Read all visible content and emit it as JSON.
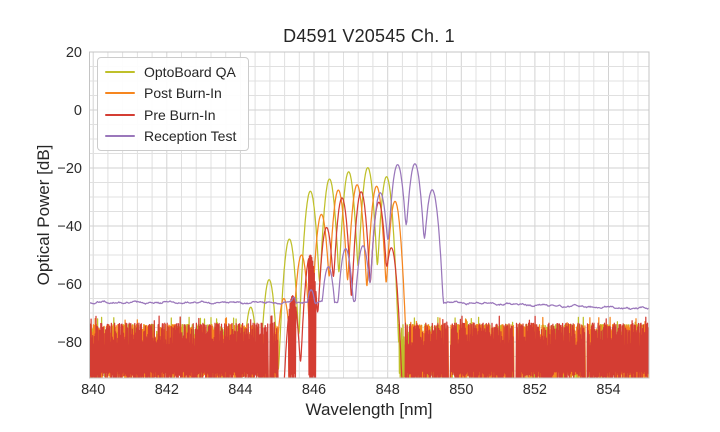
{
  "chart_data": {
    "type": "line",
    "title": "D4591 V20545 Ch. 1",
    "xlabel": "Wavelength [nm]",
    "ylabel": "Optical Power [dB]",
    "xlim": [
      839.9,
      855.1
    ],
    "ylim": [
      -92.4,
      20
    ],
    "x_ticks": [
      840,
      842,
      844,
      846,
      848,
      850,
      852,
      854
    ],
    "y_ticks": [
      20,
      0,
      -20,
      -40,
      -60,
      -80
    ],
    "x_minor_step": 0.4,
    "y_minor_step": 5,
    "grid": true,
    "legend_position": "upper left",
    "series": [
      {
        "name": "OptoBoard QA",
        "color": "#bfc02a",
        "mode_width_nm": 0.09,
        "modes": [
          [
            844.28,
            -68
          ],
          [
            844.78,
            -58.5
          ],
          [
            845.33,
            -44.5
          ],
          [
            845.9,
            -28
          ],
          [
            846.42,
            -23.8
          ],
          [
            846.94,
            -21.3
          ],
          [
            847.46,
            -19.9
          ],
          [
            847.97,
            -23.0
          ]
        ],
        "noise_top_db": -74,
        "noise_bottom_db": -90,
        "noise_regions": [
          [
            839.9,
            844.15
          ],
          [
            848.3,
            849.64
          ],
          [
            849.71,
            851.42
          ],
          [
            851.5,
            853.36
          ],
          [
            853.42,
            855.1
          ]
        ]
      },
      {
        "name": "Post Burn-In",
        "color": "#f6861f",
        "mode_width_nm": 0.09,
        "modes": [
          [
            845.18,
            -65
          ],
          [
            845.66,
            -50
          ],
          [
            846.2,
            -36
          ],
          [
            846.66,
            -27.6
          ],
          [
            847.17,
            -25.8
          ],
          [
            847.7,
            -26.3
          ],
          [
            848.2,
            -31.5
          ]
        ],
        "noise_top_db": -74,
        "noise_bottom_db": -90,
        "noise_regions": [
          [
            839.9,
            844.76
          ],
          [
            844.81,
            845.02
          ],
          [
            845.3,
            845.45
          ],
          [
            848.62,
            849.64
          ],
          [
            849.71,
            851.42
          ],
          [
            851.5,
            853.36
          ],
          [
            853.42,
            855.1
          ]
        ]
      },
      {
        "name": "Pre Burn-In",
        "color": "#d43d33",
        "mode_width_nm": 0.088,
        "modes": [
          [
            845.42,
            -64
          ],
          [
            845.9,
            -50
          ],
          [
            846.34,
            -40.5
          ],
          [
            846.76,
            -30.3
          ],
          [
            847.28,
            -28.2
          ],
          [
            847.76,
            -31.8
          ],
          [
            848.1,
            -47.5
          ]
        ],
        "noise_top_db": -73.5,
        "noise_bottom_db": -90,
        "noise_regions": [
          [
            839.9,
            844.76
          ],
          [
            844.81,
            845.02
          ],
          [
            845.3,
            845.5
          ],
          [
            845.85,
            846.05
          ],
          [
            848.48,
            849.64
          ],
          [
            849.71,
            851.42
          ],
          [
            851.5,
            853.36
          ],
          [
            853.42,
            855.1
          ]
        ]
      },
      {
        "name": "Reception Test",
        "color": "#9a77bb",
        "mode_width_nm": 0.1,
        "baseline_db": -66.4,
        "modes": [
          [
            845.45,
            -64.5
          ],
          [
            845.92,
            -62
          ],
          [
            846.39,
            -54
          ],
          [
            846.86,
            -47.8
          ],
          [
            847.33,
            -46.8
          ],
          [
            847.8,
            -28.5
          ],
          [
            848.27,
            -18.8
          ],
          [
            848.74,
            -18.5
          ],
          [
            849.21,
            -27.5
          ]
        ],
        "noise_regions": []
      }
    ]
  }
}
